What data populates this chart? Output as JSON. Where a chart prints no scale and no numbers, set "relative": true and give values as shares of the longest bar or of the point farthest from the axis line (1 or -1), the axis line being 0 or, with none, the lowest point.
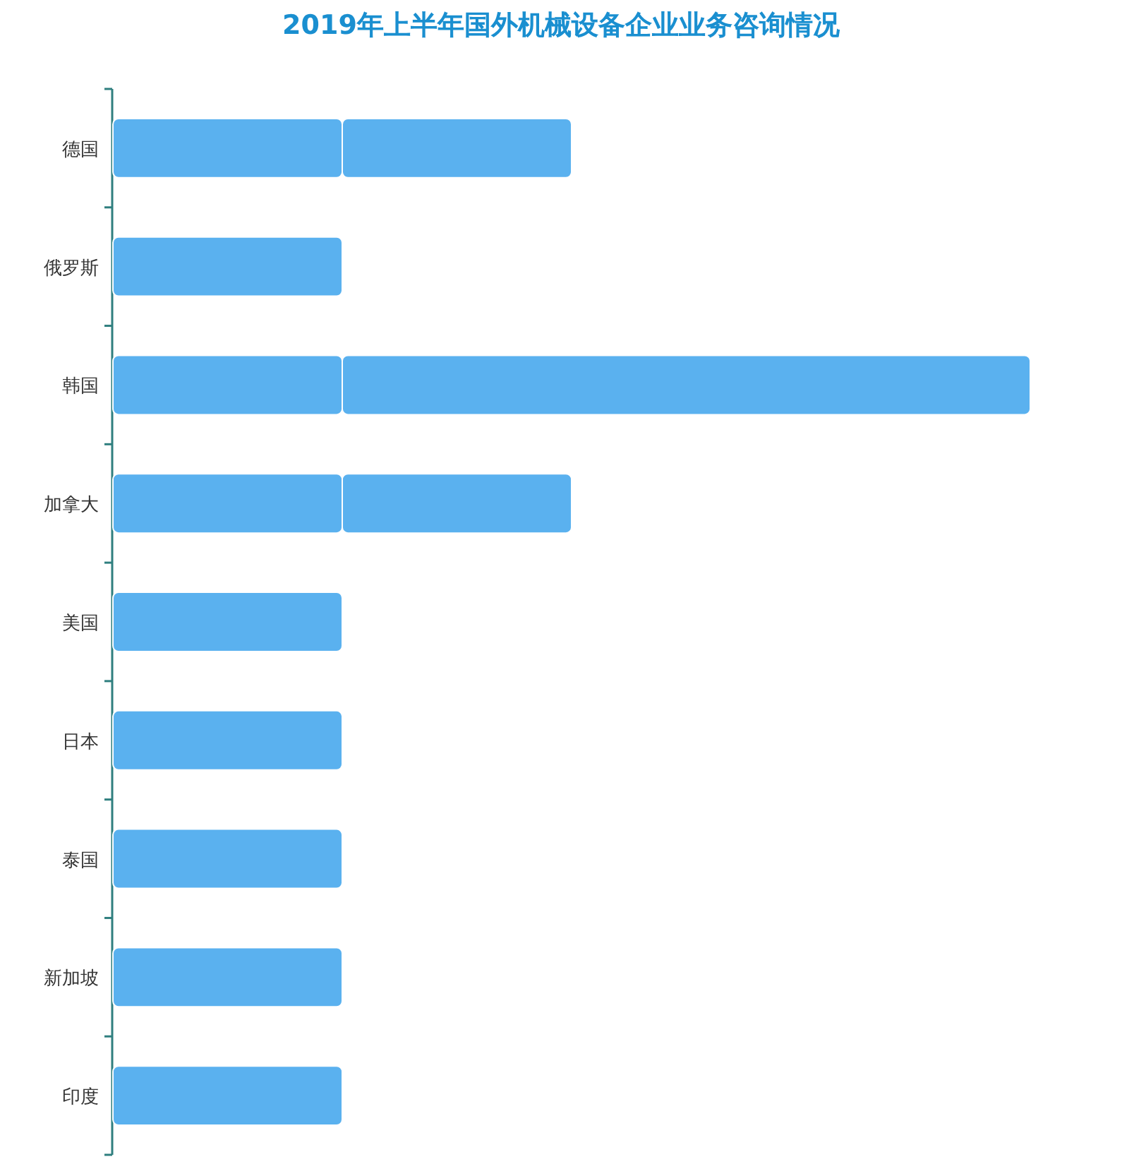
{
  "chart_data": {
    "type": "bar",
    "title": "2019年上半年国外机械设备企业业务咨询情况",
    "orientation": "horizontal",
    "stacked": true,
    "relative": true,
    "categories": [
      "德国",
      "俄罗斯",
      "韩国",
      "加拿大",
      "美国",
      "日本",
      "泰国",
      "新加坡",
      "印度"
    ],
    "series": [
      {
        "color": "#5ab1ef",
        "values": [
          0.25,
          0.25,
          0.25,
          0.25,
          0.25,
          0.25,
          0.25,
          0.25,
          0.25
        ]
      },
      {
        "color": "#5ab1ef",
        "values": [
          0.25,
          null,
          0.75,
          0.25,
          null,
          null,
          null,
          null,
          null
        ]
      }
    ]
  }
}
